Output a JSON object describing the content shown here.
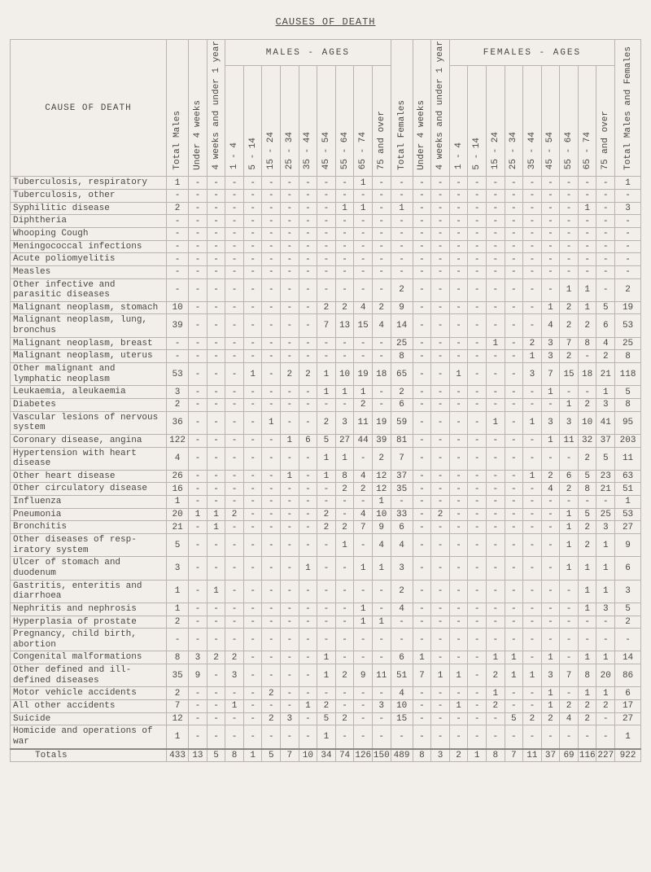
{
  "title": "CAUSES OF DEATH",
  "corner": "CAUSE OF DEATH",
  "group_males": "MALES   -   AGES",
  "group_females": "FEMALES   -   AGES",
  "vheaders": [
    "Total Males",
    "Under 4 weeks",
    "4 weeks and under 1 year",
    "1 - 4",
    "5 - 14",
    "15 - 24",
    "25 - 34",
    "35 - 44",
    "45 - 54",
    "55 - 64",
    "65 - 74",
    "75 and over",
    "Total Females",
    "Under 4 weeks",
    "4 weeks and under 1 year",
    "1 - 4",
    "5 - 14",
    "15 - 24",
    "25 - 34",
    "35 - 44",
    "45 - 54",
    "55 - 64",
    "65 - 74",
    "75 and over",
    "Total Males and Females"
  ],
  "rows": [
    {
      "l": "Tuberculosis, respiratory",
      "v": [
        "1",
        "-",
        "-",
        "-",
        "-",
        "-",
        "-",
        "-",
        "-",
        "-",
        "1",
        "-",
        "-",
        "-",
        "-",
        "-",
        "-",
        "-",
        "-",
        "-",
        "-",
        "-",
        "-",
        "-",
        "1"
      ]
    },
    {
      "l": "Tuberculosis, other",
      "v": [
        "-",
        "-",
        "-",
        "-",
        "-",
        "-",
        "-",
        "-",
        "-",
        "-",
        "-",
        "-",
        "-",
        "-",
        "-",
        "-",
        "-",
        "-",
        "-",
        "-",
        "-",
        "-",
        "-",
        "-",
        "-"
      ]
    },
    {
      "l": "Syphilitic disease",
      "v": [
        "2",
        "-",
        "-",
        "-",
        "-",
        "-",
        "-",
        "-",
        "-",
        "1",
        "1",
        "-",
        "1",
        "-",
        "-",
        "-",
        "-",
        "-",
        "-",
        "-",
        "-",
        "-",
        "1",
        "-",
        "3"
      ]
    },
    {
      "l": "Diphtheria",
      "v": [
        "-",
        "-",
        "-",
        "-",
        "-",
        "-",
        "-",
        "-",
        "-",
        "-",
        "-",
        "-",
        "-",
        "-",
        "-",
        "-",
        "-",
        "-",
        "-",
        "-",
        "-",
        "-",
        "-",
        "-",
        "-"
      ]
    },
    {
      "l": "Whooping Cough",
      "v": [
        "-",
        "-",
        "-",
        "-",
        "-",
        "-",
        "-",
        "-",
        "-",
        "-",
        "-",
        "-",
        "-",
        "-",
        "-",
        "-",
        "-",
        "-",
        "-",
        "-",
        "-",
        "-",
        "-",
        "-",
        "-"
      ]
    },
    {
      "l": "Meningococcal infections",
      "v": [
        "-",
        "-",
        "-",
        "-",
        "-",
        "-",
        "-",
        "-",
        "-",
        "-",
        "-",
        "-",
        "-",
        "-",
        "-",
        "-",
        "-",
        "-",
        "-",
        "-",
        "-",
        "-",
        "-",
        "-",
        "-"
      ]
    },
    {
      "l": "Acute poliomyelitis",
      "v": [
        "-",
        "-",
        "-",
        "-",
        "-",
        "-",
        "-",
        "-",
        "-",
        "-",
        "-",
        "-",
        "-",
        "-",
        "-",
        "-",
        "-",
        "-",
        "-",
        "-",
        "-",
        "-",
        "-",
        "-",
        "-"
      ]
    },
    {
      "l": "Measles",
      "v": [
        "-",
        "-",
        "-",
        "-",
        "-",
        "-",
        "-",
        "-",
        "-",
        "-",
        "-",
        "-",
        "-",
        "-",
        "-",
        "-",
        "-",
        "-",
        "-",
        "-",
        "-",
        "-",
        "-",
        "-",
        "-"
      ]
    },
    {
      "l": "Other infective and parasitic diseases",
      "v": [
        "-",
        "-",
        "-",
        "-",
        "-",
        "-",
        "-",
        "-",
        "-",
        "-",
        "-",
        "-",
        "2",
        "-",
        "-",
        "-",
        "-",
        "-",
        "-",
        "-",
        "-",
        "1",
        "1",
        "-",
        "2"
      ]
    },
    {
      "l": "Malignant neoplasm, stomach",
      "v": [
        "10",
        "-",
        "-",
        "-",
        "-",
        "-",
        "-",
        "-",
        "2",
        "2",
        "4",
        "2",
        "9",
        "-",
        "-",
        "-",
        "-",
        "-",
        "-",
        "-",
        "1",
        "2",
        "1",
        "5",
        "19"
      ]
    },
    {
      "l": "Malignant neoplasm, lung, bronchus",
      "v": [
        "39",
        "-",
        "-",
        "-",
        "-",
        "-",
        "-",
        "-",
        "7",
        "13",
        "15",
        "4",
        "14",
        "-",
        "-",
        "-",
        "-",
        "-",
        "-",
        "-",
        "4",
        "2",
        "2",
        "6",
        "53"
      ]
    },
    {
      "l": "Malignant neoplasm, breast",
      "v": [
        "-",
        "-",
        "-",
        "-",
        "-",
        "-",
        "-",
        "-",
        "-",
        "-",
        "-",
        "-",
        "25",
        "-",
        "-",
        "-",
        "-",
        "1",
        "-",
        "2",
        "3",
        "7",
        "8",
        "4",
        "25"
      ]
    },
    {
      "l": "Malignant neoplasm, uterus",
      "v": [
        "-",
        "-",
        "-",
        "-",
        "-",
        "-",
        "-",
        "-",
        "-",
        "-",
        "-",
        "-",
        "8",
        "-",
        "-",
        "-",
        "-",
        "-",
        "-",
        "1",
        "3",
        "2",
        "-",
        "2",
        "8"
      ]
    },
    {
      "l": "Other malignant and lymphatic neoplasm",
      "v": [
        "53",
        "-",
        "-",
        "-",
        "1",
        "-",
        "2",
        "2",
        "1",
        "10",
        "19",
        "18",
        "65",
        "-",
        "-",
        "1",
        "-",
        "-",
        "-",
        "3",
        "7",
        "15",
        "18",
        "21",
        "118"
      ]
    },
    {
      "l": "Leukaemia, aleukaemia",
      "v": [
        "3",
        "-",
        "-",
        "-",
        "-",
        "-",
        "-",
        "-",
        "1",
        "1",
        "1",
        "-",
        "2",
        "-",
        "-",
        "-",
        "-",
        "-",
        "-",
        "-",
        "1",
        "-",
        "-",
        "1",
        "5"
      ]
    },
    {
      "l": "Diabetes",
      "v": [
        "2",
        "-",
        "-",
        "-",
        "-",
        "-",
        "-",
        "-",
        "-",
        "-",
        "2",
        "-",
        "6",
        "-",
        "-",
        "-",
        "-",
        "-",
        "-",
        "-",
        "-",
        "1",
        "2",
        "3",
        "8"
      ]
    },
    {
      "l": "Vascular lesions of nervous system",
      "v": [
        "36",
        "-",
        "-",
        "-",
        "-",
        "1",
        "-",
        "-",
        "2",
        "3",
        "11",
        "19",
        "59",
        "-",
        "-",
        "-",
        "-",
        "1",
        "-",
        "1",
        "3",
        "3",
        "10",
        "41",
        "95"
      ]
    },
    {
      "l": "Coronary disease, angina",
      "v": [
        "122",
        "-",
        "-",
        "-",
        "-",
        "-",
        "1",
        "6",
        "5",
        "27",
        "44",
        "39",
        "81",
        "-",
        "-",
        "-",
        "-",
        "-",
        "-",
        "-",
        "1",
        "11",
        "32",
        "37",
        "203"
      ]
    },
    {
      "l": "Hypertension with heart disease",
      "v": [
        "4",
        "-",
        "-",
        "-",
        "-",
        "-",
        "-",
        "-",
        "1",
        "1",
        "-",
        "2",
        "7",
        "-",
        "-",
        "-",
        "-",
        "-",
        "-",
        "-",
        "-",
        "-",
        "2",
        "5",
        "11"
      ]
    },
    {
      "l": "Other heart disease",
      "v": [
        "26",
        "-",
        "-",
        "-",
        "-",
        "-",
        "1",
        "-",
        "1",
        "8",
        "4",
        "12",
        "37",
        "-",
        "-",
        "-",
        "-",
        "-",
        "-",
        "1",
        "2",
        "6",
        "5",
        "23",
        "63"
      ]
    },
    {
      "l": "Other circulatory disease",
      "v": [
        "16",
        "-",
        "-",
        "-",
        "-",
        "-",
        "-",
        "-",
        "-",
        "2",
        "2",
        "12",
        "35",
        "-",
        "-",
        "-",
        "-",
        "-",
        "-",
        "-",
        "4",
        "2",
        "8",
        "21",
        "51"
      ]
    },
    {
      "l": "Influenza",
      "v": [
        "1",
        "-",
        "-",
        "-",
        "-",
        "-",
        "-",
        "-",
        "-",
        "-",
        "-",
        "1",
        "-",
        "-",
        "-",
        "-",
        "-",
        "-",
        "-",
        "-",
        "-",
        "-",
        "-",
        "-",
        "1"
      ]
    },
    {
      "l": "Pneumonia",
      "v": [
        "20",
        "1",
        "1",
        "2",
        "-",
        "-",
        "-",
        "-",
        "2",
        "-",
        "4",
        "10",
        "33",
        "-",
        "2",
        "-",
        "-",
        "-",
        "-",
        "-",
        "-",
        "1",
        "5",
        "25",
        "53"
      ]
    },
    {
      "l": "Bronchitis",
      "v": [
        "21",
        "-",
        "1",
        "-",
        "-",
        "-",
        "-",
        "-",
        "2",
        "2",
        "7",
        "9",
        "6",
        "-",
        "-",
        "-",
        "-",
        "-",
        "-",
        "-",
        "-",
        "1",
        "2",
        "3",
        "27"
      ]
    },
    {
      "l": "Other diseases of resp- iratory system",
      "v": [
        "5",
        "-",
        "-",
        "-",
        "-",
        "-",
        "-",
        "-",
        "-",
        "1",
        "-",
        "4",
        "4",
        "-",
        "-",
        "-",
        "-",
        "-",
        "-",
        "-",
        "-",
        "1",
        "2",
        "1",
        "9"
      ]
    },
    {
      "l": "Ulcer of stomach and duodenum",
      "v": [
        "3",
        "-",
        "-",
        "-",
        "-",
        "-",
        "-",
        "1",
        "-",
        "-",
        "1",
        "1",
        "3",
        "-",
        "-",
        "-",
        "-",
        "-",
        "-",
        "-",
        "-",
        "1",
        "1",
        "1",
        "6"
      ]
    },
    {
      "l": "Gastritis, enteritis and diarrhoea",
      "v": [
        "1",
        "-",
        "1",
        "-",
        "-",
        "-",
        "-",
        "-",
        "-",
        "-",
        "-",
        "-",
        "2",
        "-",
        "-",
        "-",
        "-",
        "-",
        "-",
        "-",
        "-",
        "-",
        "1",
        "1",
        "3"
      ]
    },
    {
      "l": "Nephritis and nephrosis",
      "v": [
        "1",
        "-",
        "-",
        "-",
        "-",
        "-",
        "-",
        "-",
        "-",
        "-",
        "1",
        "-",
        "4",
        "-",
        "-",
        "-",
        "-",
        "-",
        "-",
        "-",
        "-",
        "-",
        "1",
        "3",
        "5"
      ]
    },
    {
      "l": "Hyperplasia of prostate",
      "v": [
        "2",
        "-",
        "-",
        "-",
        "-",
        "-",
        "-",
        "-",
        "-",
        "-",
        "1",
        "1",
        "-",
        "-",
        "-",
        "-",
        "-",
        "-",
        "-",
        "-",
        "-",
        "-",
        "-",
        "-",
        "2"
      ]
    },
    {
      "l": "Pregnancy, child birth, abortion",
      "v": [
        "-",
        "-",
        "-",
        "-",
        "-",
        "-",
        "-",
        "-",
        "-",
        "-",
        "-",
        "-",
        "-",
        "-",
        "-",
        "-",
        "-",
        "-",
        "-",
        "-",
        "-",
        "-",
        "-",
        "-",
        "-"
      ]
    },
    {
      "l": "Congenital malformations",
      "v": [
        "8",
        "3",
        "2",
        "2",
        "-",
        "-",
        "-",
        "-",
        "1",
        "-",
        "-",
        "-",
        "6",
        "1",
        "-",
        "-",
        "-",
        "1",
        "1",
        "-",
        "1",
        "-",
        "1",
        "1",
        "14"
      ]
    },
    {
      "l": "Other defined and ill- defined diseases",
      "v": [
        "35",
        "9",
        "-",
        "3",
        "-",
        "-",
        "-",
        "-",
        "1",
        "2",
        "9",
        "11",
        "51",
        "7",
        "1",
        "1",
        "-",
        "2",
        "1",
        "1",
        "3",
        "7",
        "8",
        "20",
        "86"
      ]
    },
    {
      "l": "Motor vehicle accidents",
      "v": [
        "2",
        "-",
        "-",
        "-",
        "-",
        "2",
        "-",
        "-",
        "-",
        "-",
        "-",
        "-",
        "4",
        "-",
        "-",
        "-",
        "-",
        "1",
        "-",
        "-",
        "1",
        "-",
        "1",
        "1",
        "6"
      ]
    },
    {
      "l": "All other accidents",
      "v": [
        "7",
        "-",
        "-",
        "1",
        "-",
        "-",
        "-",
        "1",
        "2",
        "-",
        "-",
        "3",
        "10",
        "-",
        "-",
        "1",
        "-",
        "2",
        "-",
        "-",
        "1",
        "2",
        "2",
        "2",
        "17"
      ]
    },
    {
      "l": "Suicide",
      "v": [
        "12",
        "-",
        "-",
        "-",
        "-",
        "2",
        "3",
        "-",
        "5",
        "2",
        "-",
        "-",
        "15",
        "-",
        "-",
        "-",
        "-",
        "-",
        "5",
        "2",
        "2",
        "4",
        "2",
        "-",
        "27"
      ]
    },
    {
      "l": "Homicide and operations of war",
      "v": [
        "1",
        "-",
        "-",
        "-",
        "-",
        "-",
        "-",
        "-",
        "1",
        "-",
        "-",
        "-",
        "-",
        "-",
        "-",
        "-",
        "-",
        "-",
        "-",
        "-",
        "-",
        "-",
        "-",
        "-",
        "1"
      ]
    }
  ],
  "totals": {
    "l": "Totals",
    "v": [
      "433",
      "13",
      "5",
      "8",
      "1",
      "5",
      "7",
      "10",
      "34",
      "74",
      "126",
      "150",
      "489",
      "8",
      "3",
      "2",
      "1",
      "8",
      "7",
      "11",
      "37",
      "69",
      "116",
      "227",
      "922"
    ]
  }
}
